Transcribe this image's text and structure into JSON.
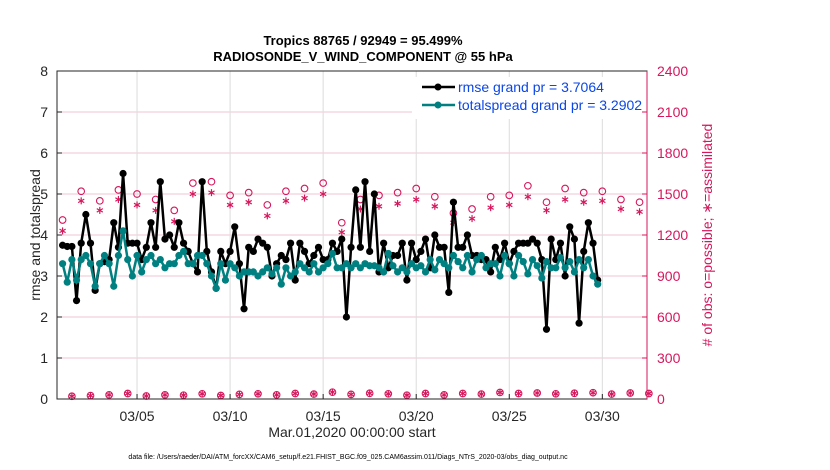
{
  "chart_data": {
    "type": "line",
    "title": [
      "Tropics 88765 / 92949 = 95.499%",
      "RADIOSONDE_V_WIND_COMPONENT @ 55 hPa"
    ],
    "xlabel": "Mar.01,2020 00:00:00 start",
    "ylabel": "rmse and totalspread",
    "y2label": "# of obs: o=possible; ∗=assimilated",
    "xlim_days": [
      0.7,
      32.4
    ],
    "ylim": [
      0,
      8
    ],
    "y2lim": [
      0,
      2400
    ],
    "yticks": [
      0,
      1,
      2,
      3,
      4,
      5,
      6,
      7,
      8
    ],
    "y2ticks": [
      0,
      300,
      600,
      900,
      1200,
      1500,
      1800,
      2100,
      2400
    ],
    "xticks": [
      {
        "day": 5,
        "label": "03/05"
      },
      {
        "day": 10,
        "label": "03/10"
      },
      {
        "day": 15,
        "label": "03/15"
      },
      {
        "day": 20,
        "label": "03/20"
      },
      {
        "day": 25,
        "label": "03/25"
      },
      {
        "day": 30,
        "label": "03/30"
      }
    ],
    "grid": true,
    "legend_position": "top-right",
    "x_start_day": 1.0,
    "x_step_days": 0.5,
    "series": [
      {
        "name": "rmse grand pr = 3.7064",
        "color": "#000000",
        "axis": "left",
        "values": [
          3.75,
          3.72,
          3.72,
          2.4,
          3.8,
          4.5,
          3.8,
          2.65,
          3.3,
          3.35,
          3.4,
          4.3,
          3.7,
          5.5,
          3.8,
          3.8,
          3.8,
          3.4,
          3.7,
          4.3,
          3.7,
          5.3,
          3.9,
          4.0,
          3.7,
          4.3,
          3.8,
          3.6,
          3.3,
          3.1,
          5.3,
          3.6,
          3.1,
          2.7,
          3.6,
          3.3,
          3.6,
          4.2,
          3.3,
          2.2,
          3.7,
          3.6,
          3.9,
          3.8,
          3.7,
          3.0,
          3.3,
          3.5,
          3.4,
          3.8,
          2.9,
          3.8,
          3.6,
          3.3,
          3.5,
          3.7,
          3.4,
          3.4,
          3.8,
          3.6,
          3.9,
          2.0,
          3.7,
          5.1,
          3.7,
          5.3,
          3.6,
          5.0,
          3.1,
          3.8,
          3.2,
          3.5,
          3.5,
          3.8,
          2.9,
          3.8,
          3.4,
          3.6,
          3.9,
          3.2,
          4.0,
          3.7,
          3.7,
          2.6,
          4.8,
          3.7,
          3.7,
          4.0,
          3.5,
          3.5,
          3.4,
          3.4,
          3.1,
          3.7,
          3.4,
          3.8,
          3.3,
          3.6,
          3.8,
          3.8,
          3.8,
          3.9,
          3.8,
          3.4,
          1.7,
          3.9,
          3.4,
          3.8,
          3.0,
          4.2,
          3.9,
          1.85,
          3.6,
          4.3,
          3.8,
          2.9
        ],
        "marker": "filled-circle"
      },
      {
        "name": "totalspread grand pr = 3.2902",
        "color": "#008080",
        "axis": "left",
        "values": [
          3.3,
          2.85,
          3.4,
          2.9,
          3.4,
          3.5,
          3.3,
          2.75,
          3.3,
          3.5,
          3.3,
          2.75,
          3.5,
          4.1,
          3.4,
          3.0,
          3.5,
          3.1,
          3.4,
          3.5,
          3.3,
          3.4,
          3.2,
          3.3,
          3.3,
          3.5,
          3.6,
          3.3,
          3.3,
          3.5,
          3.5,
          3.3,
          3.0,
          2.7,
          3.3,
          2.9,
          3.3,
          3.2,
          3.0,
          3.1,
          3.1,
          3.1,
          3.0,
          3.1,
          3.2,
          3.05,
          3.2,
          2.8,
          3.2,
          3.0,
          3.1,
          3.3,
          3.2,
          3.1,
          3.3,
          3.1,
          3.2,
          3.3,
          3.55,
          3.2,
          3.2,
          3.3,
          3.2,
          3.3,
          3.2,
          3.3,
          3.25,
          3.25,
          3.2,
          3.1,
          3.55,
          3.25,
          3.1,
          3.2,
          3.1,
          3.3,
          3.2,
          3.25,
          3.1,
          3.4,
          3.15,
          3.4,
          3.3,
          3.2,
          3.5,
          3.35,
          3.2,
          3.5,
          3.1,
          3.4,
          3.5,
          3.2,
          3.3,
          3.3,
          3.0,
          3.5,
          3.3,
          3.0,
          3.5,
          3.35,
          3.05,
          3.4,
          3.25,
          2.95,
          3.35,
          3.2,
          3.2,
          3.45,
          3.2,
          3.35,
          3.1,
          3.4,
          3.2,
          3.4,
          3.0,
          2.8
        ],
        "marker": "filled-circle"
      },
      {
        "name": "possible obs",
        "color": "#d6175c",
        "axis": "right",
        "marker": "open-circle",
        "values_00z": [
          1310,
          1520,
          1450,
          1530,
          1500,
          1460,
          1380,
          1580,
          1590,
          1490,
          1510,
          1420,
          1520,
          1540,
          1580,
          1290,
          1460,
          1490,
          1510,
          1540,
          1480,
          1360,
          1390,
          1480,
          1490,
          1560,
          1440,
          1540,
          1510,
          1520,
          1460,
          1440
        ],
        "values_12z": [
          20,
          25,
          30,
          40,
          22,
          30,
          28,
          38,
          26,
          34,
          38,
          30,
          40,
          36,
          50,
          34,
          42,
          38,
          28,
          40,
          30,
          40,
          36,
          48,
          40,
          44,
          38,
          42,
          46,
          36,
          44,
          40
        ]
      },
      {
        "name": "assimilated obs",
        "color": "#d6175c",
        "axis": "right",
        "marker": "asterisk",
        "values_00z": [
          1230,
          1450,
          1380,
          1460,
          1420,
          1380,
          1300,
          1500,
          1510,
          1420,
          1440,
          1340,
          1450,
          1470,
          1500,
          1220,
          1390,
          1410,
          1430,
          1460,
          1410,
          1290,
          1320,
          1400,
          1420,
          1480,
          1380,
          1460,
          1440,
          1450,
          1390,
          1370
        ],
        "values_12z": [
          20,
          25,
          30,
          40,
          22,
          30,
          28,
          38,
          26,
          34,
          38,
          30,
          40,
          36,
          50,
          34,
          42,
          38,
          28,
          40,
          30,
          40,
          36,
          48,
          40,
          44,
          38,
          42,
          46,
          36,
          44,
          40
        ]
      }
    ]
  },
  "legend": [
    {
      "label": "rmse grand pr = 3.7064",
      "color": "#000000"
    },
    {
      "label": "totalspread grand pr = 3.2902",
      "color": "#008080"
    }
  ],
  "footnote": "data file: /Users/raeder/DAI/ATM_forcXX/CAM6_setup/f.e21.FHIST_BGC.f09_025.CAM6assim.011/Diags_NTrS_2020-03/obs_diag_output.nc"
}
